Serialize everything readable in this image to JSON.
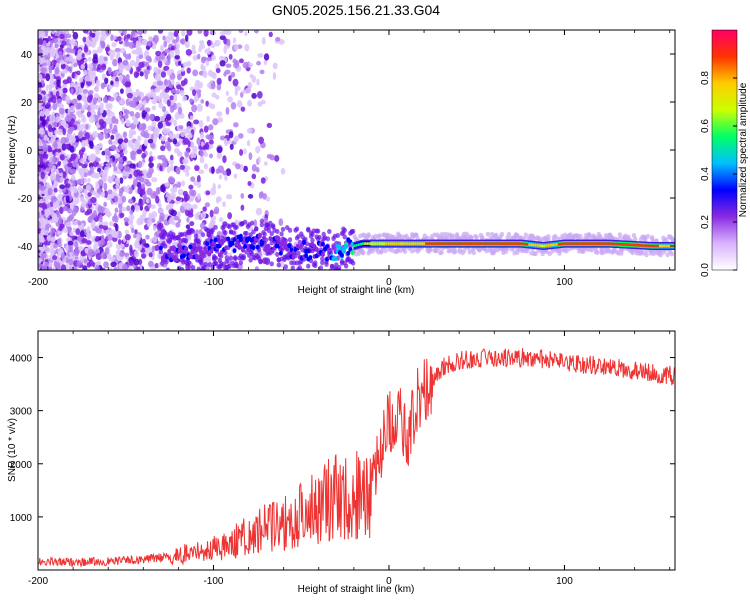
{
  "figure_title": "GN05.2025.156.21.33.G04",
  "chart_data": [
    {
      "type": "heatmap",
      "title": "GN05.2025.156.21.33.G04",
      "xlabel": "Height of straight line (km)",
      "ylabel": "Frequency (Hz)",
      "xlim": [
        -200,
        163
      ],
      "ylim": [
        -50,
        50
      ],
      "xticks": [
        -200,
        -100,
        0,
        100
      ],
      "yticks": [
        -40,
        -20,
        0,
        20,
        40
      ],
      "grid": false,
      "colorbar": {
        "label": "Normalized spectral amplitude",
        "range": [
          0,
          1
        ],
        "ticks": [
          0.0,
          0.2,
          0.4,
          0.6,
          0.8
        ],
        "colors": [
          "#ffffff",
          "#d9b3ff",
          "#8a2be2",
          "#0000ff",
          "#00bfff",
          "#00ff66",
          "#ccff00",
          "#ffcc00",
          "#ff3300",
          "#ff0066"
        ]
      },
      "ridge": {
        "name": "dominant frequency",
        "x": [
          -125,
          -100,
          -75,
          -50,
          -30,
          -15,
          0,
          25,
          50,
          75,
          88,
          100,
          125,
          150,
          163
        ],
        "frequency": [
          -43,
          -41,
          -38,
          -42,
          -42,
          -39,
          -39,
          -39,
          -39,
          -39,
          -40,
          -39,
          -39,
          -40,
          -40
        ],
        "amplitude": [
          0.3,
          0.35,
          0.35,
          0.3,
          0.45,
          0.6,
          0.75,
          0.85,
          0.9,
          0.9,
          0.7,
          0.9,
          0.9,
          0.85,
          0.8
        ]
      }
    },
    {
      "type": "line",
      "xlabel": "Height of straight line (km)",
      "ylabel": "SNR (10 * v/v)",
      "xlim": [
        -200,
        163
      ],
      "ylim": [
        0,
        4500
      ],
      "xticks": [
        -200,
        -100,
        0,
        100
      ],
      "yticks": [
        1000,
        2000,
        3000,
        4000
      ],
      "grid": false,
      "series": [
        {
          "color": "#ee3333",
          "x": [
            -200,
            -180,
            -160,
            -140,
            -125,
            -115,
            -105,
            -95,
            -85,
            -75,
            -65,
            -55,
            -45,
            -35,
            -25,
            -15,
            -10,
            -5,
            0,
            5,
            10,
            15,
            20,
            25,
            30,
            40,
            60,
            80,
            100,
            120,
            140,
            163
          ],
          "y": [
            150,
            150,
            160,
            200,
            250,
            350,
            400,
            500,
            650,
            800,
            950,
            1100,
            1250,
            1500,
            1500,
            1600,
            1600,
            2200,
            2800,
            3000,
            2400,
            3100,
            3400,
            3600,
            3800,
            3950,
            4000,
            4000,
            3900,
            3850,
            3750,
            3650
          ]
        }
      ]
    }
  ]
}
